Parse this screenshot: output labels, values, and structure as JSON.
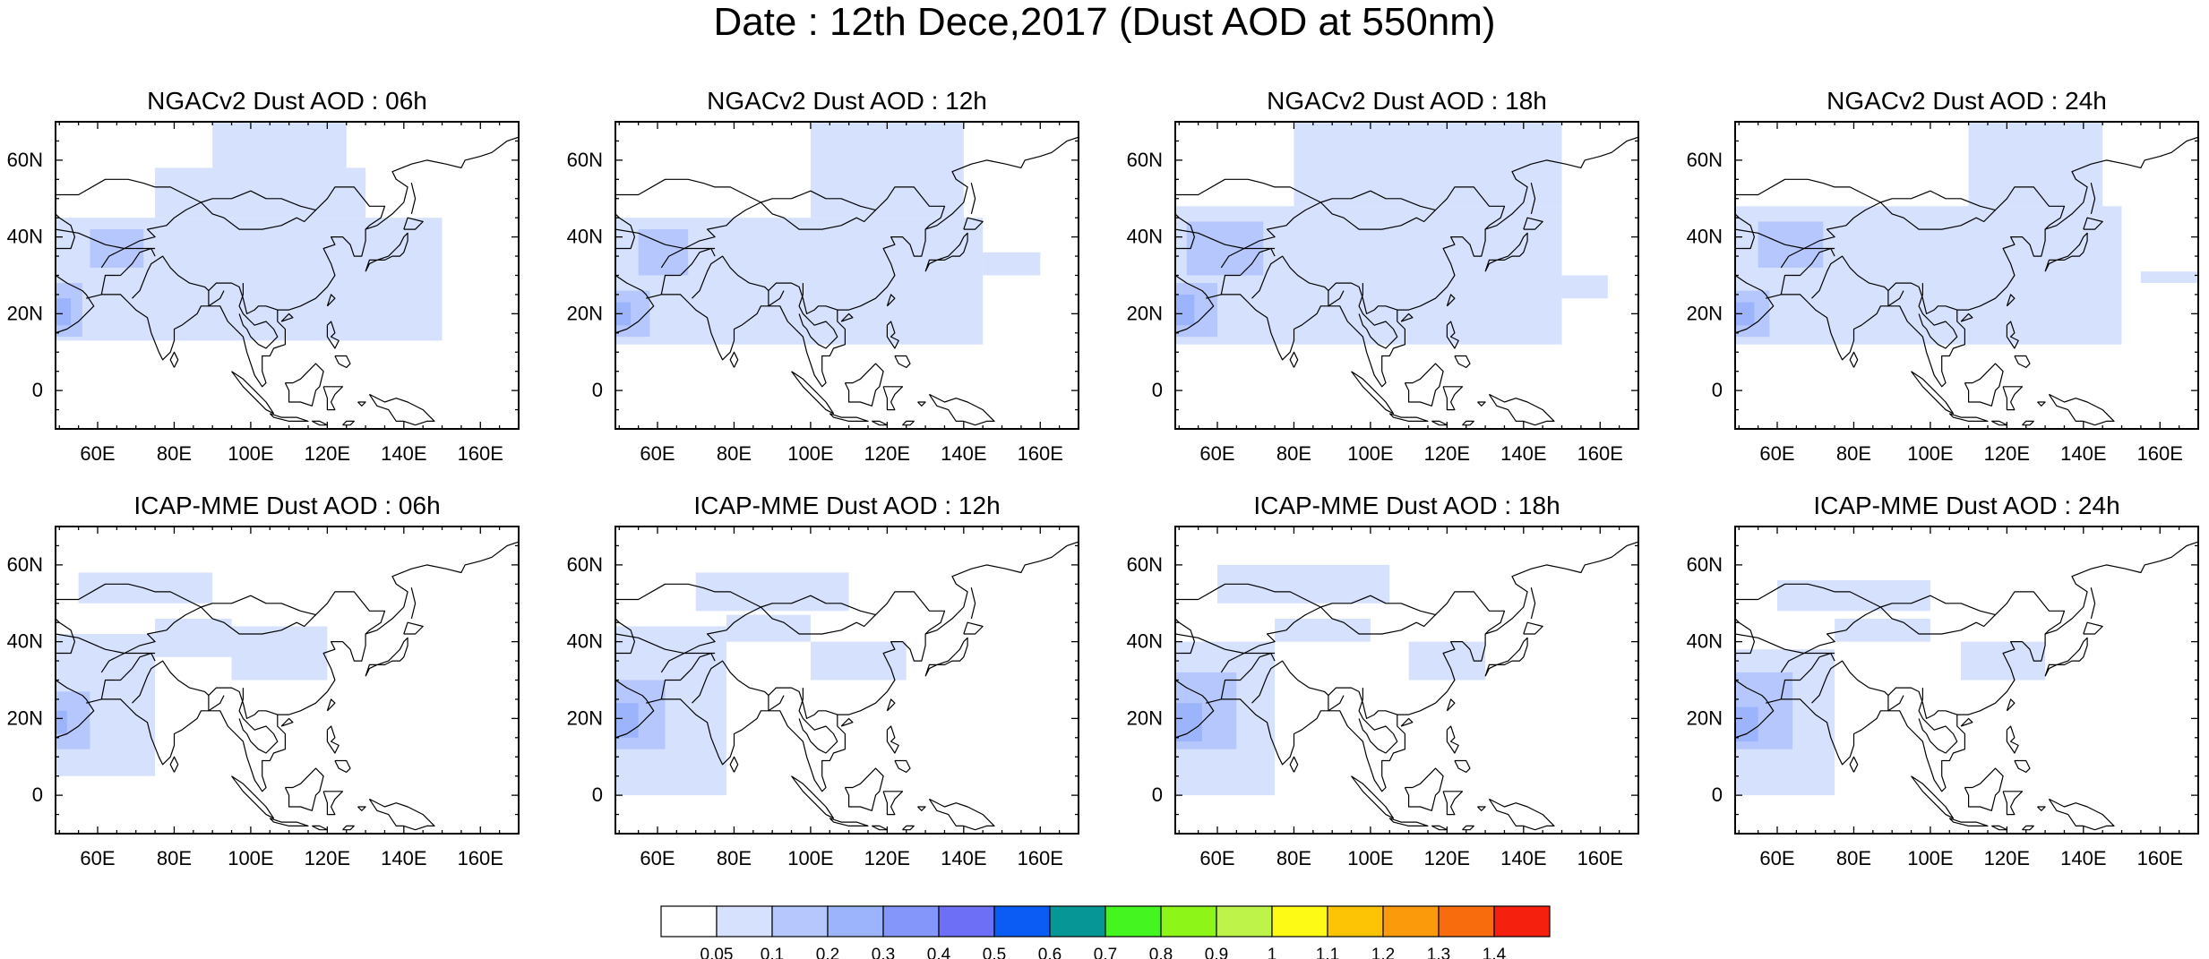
{
  "figure": {
    "title": "Date : 12th Dece,2017 (Dust AOD at 550nm)"
  },
  "colors": {
    "coast": "#000000",
    "frame": "#000000",
    "levels": [
      "#ffffff",
      "#d6e1fe",
      "#b6c7fd",
      "#9cb4fc",
      "#8596fb",
      "#6d6ff6",
      "#0a5cf5",
      "#079696",
      "#44f51f",
      "#8ef519",
      "#bef449",
      "#fdfb15",
      "#fcc405",
      "#fb9a0a",
      "#f86c0e",
      "#f6200f"
    ]
  },
  "colorbar": {
    "tick_labels": [
      "0.05",
      "0.1",
      "0.2",
      "0.3",
      "0.4",
      "0.5",
      "0.6",
      "0.7",
      "0.8",
      "0.9",
      "1",
      "1.1",
      "1.2",
      "1.3",
      "1.4"
    ]
  },
  "chart_data": [
    {
      "type": "heatmap",
      "title": "NGACv2 Dust AOD : 06h",
      "model": "NGACv2",
      "lead": "06h",
      "lon_range": [
        49,
        170
      ],
      "lat_range": [
        -10,
        70
      ],
      "grid": false,
      "x_tick_labels": [
        "60E",
        "80E",
        "100E",
        "120E",
        "140E",
        "160E"
      ],
      "y_tick_labels": [
        "60N",
        "40N",
        "20N",
        "0"
      ],
      "fields": [
        {
          "level": 1,
          "lon": [
            49,
            150
          ],
          "lat": [
            13,
            45
          ]
        },
        {
          "level": 1,
          "lon": [
            75,
            130
          ],
          "lat": [
            45,
            58
          ]
        },
        {
          "level": 1,
          "lon": [
            90,
            125
          ],
          "lat": [
            58,
            70
          ]
        },
        {
          "level": 2,
          "lon": [
            49,
            56
          ],
          "lat": [
            14,
            28
          ]
        },
        {
          "level": 2,
          "lon": [
            58,
            72
          ],
          "lat": [
            32,
            42
          ]
        },
        {
          "level": 3,
          "lon": [
            49,
            53
          ],
          "lat": [
            17,
            24
          ]
        }
      ]
    },
    {
      "type": "heatmap",
      "title": "NGACv2 Dust AOD : 12h",
      "model": "NGACv2",
      "lead": "12h",
      "lon_range": [
        49,
        170
      ],
      "lat_range": [
        -10,
        70
      ],
      "grid": false,
      "x_tick_labels": [
        "60E",
        "80E",
        "100E",
        "120E",
        "140E",
        "160E"
      ],
      "y_tick_labels": [
        "60N",
        "40N",
        "20N",
        "0"
      ],
      "fields": [
        {
          "level": 1,
          "lon": [
            49,
            145
          ],
          "lat": [
            12,
            45
          ]
        },
        {
          "level": 1,
          "lon": [
            145,
            160
          ],
          "lat": [
            30,
            36
          ]
        },
        {
          "level": 1,
          "lon": [
            100,
            140
          ],
          "lat": [
            45,
            70
          ]
        },
        {
          "level": 2,
          "lon": [
            49,
            58
          ],
          "lat": [
            14,
            26
          ]
        },
        {
          "level": 2,
          "lon": [
            55,
            68
          ],
          "lat": [
            30,
            42
          ]
        },
        {
          "level": 3,
          "lon": [
            49,
            53
          ],
          "lat": [
            17,
            23
          ]
        }
      ]
    },
    {
      "type": "heatmap",
      "title": "NGACv2 Dust AOD : 18h",
      "model": "NGACv2",
      "lead": "18h",
      "lon_range": [
        49,
        170
      ],
      "lat_range": [
        -10,
        70
      ],
      "grid": false,
      "x_tick_labels": [
        "60E",
        "80E",
        "100E",
        "120E",
        "140E",
        "160E"
      ],
      "y_tick_labels": [
        "60N",
        "40N",
        "20N",
        "0"
      ],
      "fields": [
        {
          "level": 1,
          "lon": [
            49,
            150
          ],
          "lat": [
            12,
            48
          ]
        },
        {
          "level": 1,
          "lon": [
            150,
            162
          ],
          "lat": [
            24,
            30
          ]
        },
        {
          "level": 1,
          "lon": [
            80,
            150
          ],
          "lat": [
            48,
            70
          ]
        },
        {
          "level": 2,
          "lon": [
            49,
            60
          ],
          "lat": [
            14,
            28
          ]
        },
        {
          "level": 2,
          "lon": [
            52,
            72
          ],
          "lat": [
            30,
            44
          ]
        },
        {
          "level": 3,
          "lon": [
            49,
            54
          ],
          "lat": [
            17,
            25
          ]
        }
      ]
    },
    {
      "type": "heatmap",
      "title": "NGACv2 Dust AOD : 24h",
      "model": "NGACv2",
      "lead": "24h",
      "lon_range": [
        49,
        170
      ],
      "lat_range": [
        -10,
        70
      ],
      "grid": false,
      "x_tick_labels": [
        "60E",
        "80E",
        "100E",
        "120E",
        "140E",
        "160E"
      ],
      "y_tick_labels": [
        "60N",
        "40N",
        "20N",
        "0"
      ],
      "fields": [
        {
          "level": 1,
          "lon": [
            49,
            150
          ],
          "lat": [
            12,
            48
          ]
        },
        {
          "level": 1,
          "lon": [
            155,
            170
          ],
          "lat": [
            28,
            31
          ]
        },
        {
          "level": 1,
          "lon": [
            110,
            145
          ],
          "lat": [
            48,
            70
          ]
        },
        {
          "level": 2,
          "lon": [
            49,
            58
          ],
          "lat": [
            14,
            26
          ]
        },
        {
          "level": 2,
          "lon": [
            55,
            72
          ],
          "lat": [
            32,
            44
          ]
        },
        {
          "level": 3,
          "lon": [
            49,
            54
          ],
          "lat": [
            17,
            23
          ]
        }
      ]
    },
    {
      "type": "heatmap",
      "title": "ICAP-MME Dust AOD : 06h",
      "model": "ICAP-MME",
      "lead": "06h",
      "lon_range": [
        49,
        170
      ],
      "lat_range": [
        -10,
        70
      ],
      "grid": false,
      "x_tick_labels": [
        "60E",
        "80E",
        "100E",
        "120E",
        "140E",
        "160E"
      ],
      "y_tick_labels": [
        "60N",
        "40N",
        "20N",
        "0"
      ],
      "fields": [
        {
          "level": 1,
          "lon": [
            49,
            75
          ],
          "lat": [
            5,
            42
          ]
        },
        {
          "level": 1,
          "lon": [
            75,
            95
          ],
          "lat": [
            36,
            46
          ]
        },
        {
          "level": 1,
          "lon": [
            95,
            120
          ],
          "lat": [
            30,
            44
          ]
        },
        {
          "level": 1,
          "lon": [
            55,
            90
          ],
          "lat": [
            50,
            58
          ]
        },
        {
          "level": 2,
          "lon": [
            49,
            58
          ],
          "lat": [
            12,
            27
          ]
        },
        {
          "level": 3,
          "lon": [
            49,
            52
          ],
          "lat": [
            16,
            22
          ]
        }
      ]
    },
    {
      "type": "heatmap",
      "title": "ICAP-MME Dust AOD : 12h",
      "model": "ICAP-MME",
      "lead": "12h",
      "lon_range": [
        49,
        170
      ],
      "lat_range": [
        -10,
        70
      ],
      "grid": false,
      "x_tick_labels": [
        "60E",
        "80E",
        "100E",
        "120E",
        "140E",
        "160E"
      ],
      "y_tick_labels": [
        "60N",
        "40N",
        "20N",
        "0"
      ],
      "fields": [
        {
          "level": 1,
          "lon": [
            49,
            78
          ],
          "lat": [
            0,
            44
          ]
        },
        {
          "level": 1,
          "lon": [
            78,
            100
          ],
          "lat": [
            40,
            47
          ]
        },
        {
          "level": 1,
          "lon": [
            100,
            125
          ],
          "lat": [
            30,
            40
          ]
        },
        {
          "level": 1,
          "lon": [
            70,
            110
          ],
          "lat": [
            48,
            58
          ]
        },
        {
          "level": 2,
          "lon": [
            49,
            62
          ],
          "lat": [
            12,
            30
          ]
        },
        {
          "level": 3,
          "lon": [
            49,
            55
          ],
          "lat": [
            15,
            24
          ]
        }
      ]
    },
    {
      "type": "heatmap",
      "title": "ICAP-MME Dust AOD : 18h",
      "model": "ICAP-MME",
      "lead": "18h",
      "lon_range": [
        49,
        170
      ],
      "lat_range": [
        -10,
        70
      ],
      "grid": false,
      "x_tick_labels": [
        "60E",
        "80E",
        "100E",
        "120E",
        "140E",
        "160E"
      ],
      "y_tick_labels": [
        "60N",
        "40N",
        "20N",
        "0"
      ],
      "fields": [
        {
          "level": 1,
          "lon": [
            49,
            75
          ],
          "lat": [
            0,
            40
          ]
        },
        {
          "level": 1,
          "lon": [
            75,
            100
          ],
          "lat": [
            40,
            46
          ]
        },
        {
          "level": 1,
          "lon": [
            110,
            130
          ],
          "lat": [
            30,
            40
          ]
        },
        {
          "level": 1,
          "lon": [
            60,
            105
          ],
          "lat": [
            50,
            60
          ]
        },
        {
          "level": 2,
          "lon": [
            49,
            65
          ],
          "lat": [
            12,
            32
          ]
        },
        {
          "level": 3,
          "lon": [
            49,
            56
          ],
          "lat": [
            14,
            24
          ]
        }
      ]
    },
    {
      "type": "heatmap",
      "title": "ICAP-MME Dust AOD : 24h",
      "model": "ICAP-MME",
      "lead": "24h",
      "lon_range": [
        49,
        170
      ],
      "lat_range": [
        -10,
        70
      ],
      "grid": false,
      "x_tick_labels": [
        "60E",
        "80E",
        "100E",
        "120E",
        "140E",
        "160E"
      ],
      "y_tick_labels": [
        "60N",
        "40N",
        "20N",
        "0"
      ],
      "fields": [
        {
          "level": 1,
          "lon": [
            49,
            75
          ],
          "lat": [
            0,
            38
          ]
        },
        {
          "level": 1,
          "lon": [
            75,
            100
          ],
          "lat": [
            40,
            46
          ]
        },
        {
          "level": 1,
          "lon": [
            108,
            130
          ],
          "lat": [
            30,
            40
          ]
        },
        {
          "level": 1,
          "lon": [
            60,
            100
          ],
          "lat": [
            48,
            56
          ]
        },
        {
          "level": 2,
          "lon": [
            49,
            64
          ],
          "lat": [
            12,
            32
          ]
        },
        {
          "level": 3,
          "lon": [
            49,
            55
          ],
          "lat": [
            14,
            23
          ]
        }
      ]
    }
  ]
}
